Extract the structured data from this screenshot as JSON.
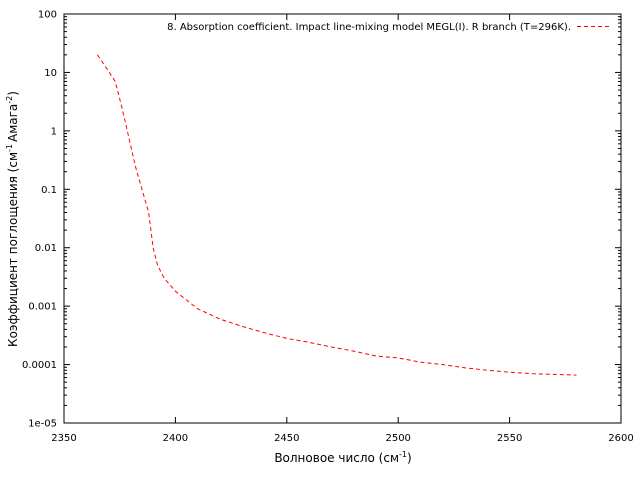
{
  "chart_data": {
    "type": "line",
    "title": "",
    "xlabel": "Волновое число (см",
    "xlabel_sup": "-1",
    "xlabel_tail": ")",
    "ylabel_parts": [
      "Коэффициент поглощения (см",
      "-1",
      "Амага",
      "-2",
      ")"
    ],
    "xlim": [
      2350,
      2600
    ],
    "ylim": [
      1e-05,
      100
    ],
    "yscale": "log",
    "x_ticks": [
      2350,
      2400,
      2450,
      2500,
      2550,
      2600
    ],
    "x_tick_labels": [
      "2350",
      "2400",
      "2450",
      "2500",
      "2550",
      "2600"
    ],
    "y_ticks": [
      1e-05,
      0.0001,
      0.001,
      0.01,
      0.1,
      1,
      10,
      100
    ],
    "y_tick_labels": [
      "1e-05",
      "0.0001",
      "0.001",
      "0.01",
      "0.1",
      "1",
      "10",
      "100"
    ],
    "grid": false,
    "legend_position": "top-right",
    "series": [
      {
        "name": "8. Absorption coefficient. Impact line-mixing model MEGL(I). R branch (T=296K).",
        "color": "#ff0000",
        "style": "dashed",
        "x": [
          2365,
          2369,
          2373,
          2376,
          2379,
          2382,
          2385,
          2388,
          2390,
          2392,
          2395,
          2400,
          2410,
          2420,
          2430,
          2440,
          2450,
          2460,
          2470,
          2480,
          2490,
          2500,
          2510,
          2520,
          2530,
          2540,
          2550,
          2560,
          2570,
          2580
        ],
        "y": [
          20,
          12,
          7,
          2.5,
          0.8,
          0.25,
          0.1,
          0.04,
          0.01,
          0.005,
          0.003,
          0.0018,
          0.0009,
          0.0006,
          0.00045,
          0.00035,
          0.00028,
          0.00024,
          0.0002,
          0.00017,
          0.00014,
          0.00013,
          0.00011,
          0.0001,
          8.8e-05,
          8e-05,
          7.4e-05,
          7e-05,
          6.8e-05,
          6.6e-05
        ]
      }
    ]
  }
}
